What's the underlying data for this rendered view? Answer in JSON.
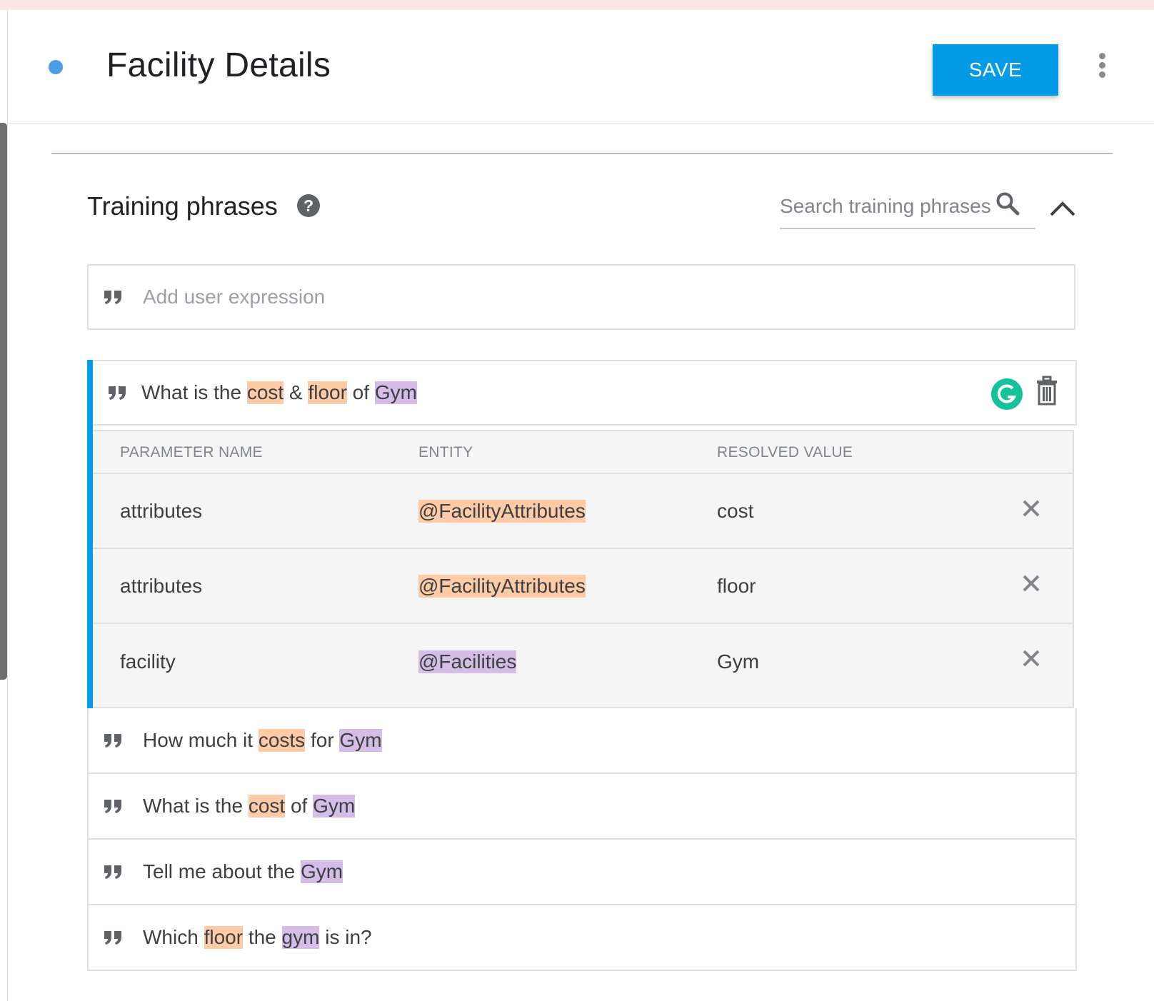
{
  "header": {
    "title": "Facility Details",
    "save_label": "SAVE",
    "accent_color": "#039be5",
    "status_dot_color": "#4a9de6"
  },
  "training": {
    "title": "Training phrases",
    "help_icon": "help-circle-icon",
    "search_placeholder": "Search training phrases",
    "add_placeholder": "Add user expression",
    "selected_phrase": {
      "segments": [
        {
          "text": "What is the ",
          "type": "plain"
        },
        {
          "text": "cost",
          "type": "attr"
        },
        {
          "text": " & ",
          "type": "plain"
        },
        {
          "text": "floor",
          "type": "attr"
        },
        {
          "text": " of ",
          "type": "plain"
        },
        {
          "text": "Gym",
          "type": "fac"
        }
      ]
    },
    "parameters": {
      "headers": {
        "name": "PARAMETER NAME",
        "entity": "ENTITY",
        "value": "RESOLVED VALUE"
      },
      "rows": [
        {
          "name": "attributes",
          "entity": "@FacilityAttributes",
          "entity_type": "attr",
          "value": "cost"
        },
        {
          "name": "attributes",
          "entity": "@FacilityAttributes",
          "entity_type": "attr",
          "value": "floor"
        },
        {
          "name": "facility",
          "entity": "@Facilities",
          "entity_type": "fac",
          "value": "Gym"
        }
      ]
    },
    "phrases": [
      [
        {
          "text": "How much it ",
          "type": "plain"
        },
        {
          "text": "costs",
          "type": "attr"
        },
        {
          "text": " for ",
          "type": "plain"
        },
        {
          "text": "Gym",
          "type": "fac"
        }
      ],
      [
        {
          "text": "What is the ",
          "type": "plain"
        },
        {
          "text": "cost",
          "type": "attr"
        },
        {
          "text": " of ",
          "type": "plain"
        },
        {
          "text": "Gym",
          "type": "fac"
        }
      ],
      [
        {
          "text": "Tell me about the ",
          "type": "plain"
        },
        {
          "text": "Gym",
          "type": "fac"
        }
      ],
      [
        {
          "text": "Which ",
          "type": "plain"
        },
        {
          "text": "floor",
          "type": "attr"
        },
        {
          "text": " the ",
          "type": "plain"
        },
        {
          "text": "gym",
          "type": "fac"
        },
        {
          "text": " is in?",
          "type": "plain"
        }
      ]
    ],
    "highlight_colors": {
      "attr": "#ffcaa6",
      "fac": "#d5bde8"
    }
  }
}
